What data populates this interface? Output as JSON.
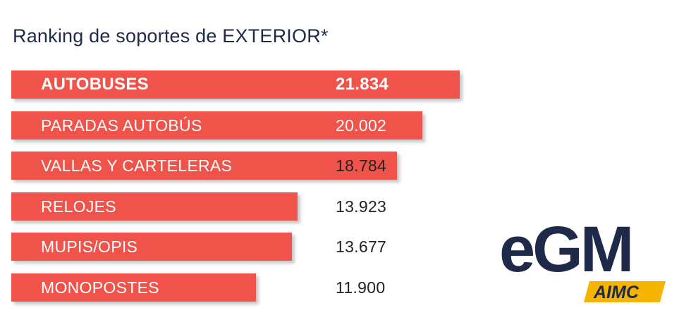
{
  "title": "Ranking de soportes de EXTERIOR*",
  "chart_data": {
    "type": "bar",
    "orientation": "horizontal",
    "title": "Ranking de soportes de EXTERIOR*",
    "categories": [
      "AUTOBUSES",
      "PARADAS AUTOBÚS",
      "VALLAS Y CARTELERAS",
      "RELOJES",
      "MUPIS/OPIS",
      "MONOPOSTES"
    ],
    "values": [
      21834,
      20002,
      18784,
      13923,
      13677,
      11900
    ],
    "value_labels": [
      "21.834",
      "20.002",
      "18.784",
      "13.923",
      "13.677",
      "11.900"
    ],
    "bar_color": "#ef534a",
    "highlight_first_bold": true
  },
  "logo": {
    "text": "eGM",
    "subtext": "AIMC",
    "colors": {
      "main": "#1f2a4a",
      "badge": "#f5b400",
      "badge_text": "#1f2a4a"
    }
  }
}
